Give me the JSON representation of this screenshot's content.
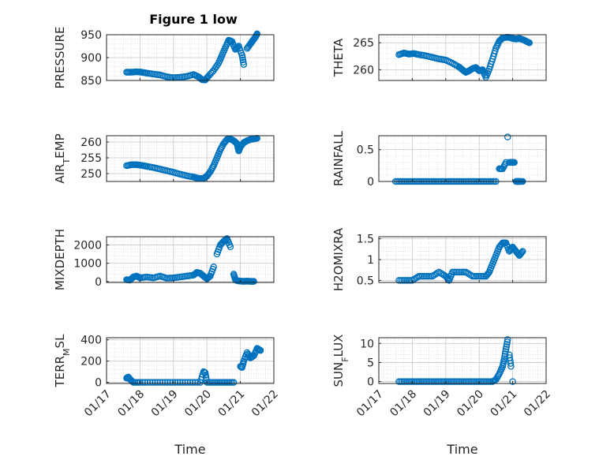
{
  "figure": {
    "title": "Figure 1 low",
    "marker_color": "#0072BD"
  },
  "chart_data": [
    {
      "type": "scatter",
      "ylabel": "PRESSURE",
      "ylabel_sub": "",
      "ylim": [
        850,
        950
      ],
      "yticks": [
        850,
        900,
        950
      ],
      "ytick_labels": [
        "850",
        "900",
        "950"
      ],
      "xlim": [
        "01/17",
        "01/22"
      ],
      "xticks": [
        "01/17",
        "01/18",
        "01/19",
        "01/20",
        "01/21",
        "01/22"
      ],
      "show_xticklabels": false,
      "grid": true,
      "x": [
        0.6,
        0.75,
        0.9,
        1.05,
        1.2,
        1.4,
        1.6,
        1.8,
        2.0,
        2.2,
        2.4,
        2.6,
        2.75,
        2.85,
        2.95,
        3.05,
        3.2,
        3.35,
        3.45,
        3.55,
        3.65,
        3.75,
        3.85,
        3.95,
        4.05,
        4.1,
        4.2,
        4.3,
        4.35,
        4.4,
        4.45,
        4.5
      ],
      "y": [
        868,
        868,
        869,
        868,
        866,
        864,
        862,
        858,
        856,
        857,
        859,
        863,
        858,
        852,
        851,
        860,
        872,
        888,
        905,
        922,
        938,
        935,
        918,
        925,
        905,
        885,
        920,
        930,
        935,
        940,
        945,
        952
      ]
    },
    {
      "type": "scatter",
      "ylabel": "THETA",
      "ylabel_sub": "",
      "ylim": [
        258,
        266.5
      ],
      "yticks": [
        260,
        265
      ],
      "ytick_labels": [
        "260",
        "265"
      ],
      "xlim": [
        "01/17",
        "01/22"
      ],
      "xticks": [
        "01/17",
        "01/18",
        "01/19",
        "01/20",
        "01/21",
        "01/22"
      ],
      "show_xticklabels": false,
      "grid": true,
      "x": [
        0.6,
        0.75,
        0.9,
        1.05,
        1.2,
        1.4,
        1.6,
        1.8,
        2.0,
        2.2,
        2.4,
        2.5,
        2.6,
        2.7,
        2.8,
        2.9,
        3.0,
        3.1,
        3.2,
        3.3,
        3.4,
        3.5,
        3.6,
        3.7,
        3.8,
        3.9,
        4.0,
        4.1,
        4.2,
        4.3,
        4.4,
        4.5
      ],
      "y": [
        262.8,
        263.1,
        262.9,
        263.0,
        262.8,
        262.6,
        262.3,
        262.0,
        261.8,
        261.2,
        260.5,
        260.0,
        259.5,
        259.8,
        260.2,
        260.4,
        259.8,
        260.0,
        258.6,
        260.1,
        262.0,
        264.0,
        265.3,
        265.9,
        266.0,
        266.0,
        265.8,
        265.7,
        265.8,
        265.6,
        265.3,
        265.0
      ]
    },
    {
      "type": "scatter",
      "ylabel": "AIR",
      "ylabel_sub": "T",
      "ylabel_rest": "EMP",
      "ylim": [
        247.5,
        262
      ],
      "yticks": [
        250,
        255,
        260
      ],
      "ytick_labels": [
        "250",
        "255",
        "260"
      ],
      "xlim": [
        "01/17",
        "01/22"
      ],
      "xticks": [
        "01/17",
        "01/18",
        "01/19",
        "01/20",
        "01/21",
        "01/22"
      ],
      "show_xticklabels": false,
      "grid": true,
      "x": [
        0.6,
        0.75,
        0.9,
        1.05,
        1.2,
        1.4,
        1.6,
        1.8,
        2.0,
        2.2,
        2.4,
        2.6,
        2.7,
        2.8,
        2.9,
        3.0,
        3.1,
        3.2,
        3.3,
        3.4,
        3.5,
        3.6,
        3.7,
        3.8,
        3.9,
        3.95,
        4.0,
        4.1,
        4.2,
        4.3,
        4.4,
        4.5
      ],
      "y": [
        252.5,
        252.8,
        252.8,
        252.6,
        252.3,
        251.9,
        251.4,
        250.9,
        250.4,
        249.8,
        249.3,
        248.9,
        248.6,
        248.4,
        248.5,
        249.2,
        250.6,
        252.5,
        255.0,
        257.6,
        259.5,
        260.8,
        261.0,
        260.4,
        259.5,
        257.2,
        258.5,
        259.8,
        260.4,
        260.8,
        261.0,
        261.2
      ]
    },
    {
      "type": "scatter",
      "ylabel": "RAINFALL",
      "ylabel_sub": "",
      "ylim": [
        0,
        0.72
      ],
      "yticks": [
        0,
        0.5
      ],
      "ytick_labels": [
        "0",
        "0.5"
      ],
      "xlim": [
        "01/17",
        "01/22"
      ],
      "xticks": [
        "01/17",
        "01/18",
        "01/19",
        "01/20",
        "01/21",
        "01/22"
      ],
      "show_xticklabels": false,
      "grid": true,
      "x": [
        0.5,
        0.7,
        0.9,
        1.1,
        1.3,
        1.5,
        1.7,
        1.9,
        2.1,
        2.3,
        2.5,
        2.7,
        2.9,
        3.1,
        3.3,
        3.5,
        3.6,
        3.7,
        3.8,
        3.85,
        3.9,
        3.95,
        4.0,
        4.05,
        4.1,
        4.15,
        4.2,
        4.3
      ],
      "y": [
        0,
        0,
        0,
        0,
        0,
        0,
        0,
        0,
        0,
        0,
        0,
        0,
        0,
        0,
        0,
        0,
        0.2,
        0.2,
        0.3,
        0.7,
        0.3,
        0.3,
        0.3,
        0.3,
        0,
        0,
        0,
        0
      ]
    },
    {
      "type": "scatter",
      "ylabel": "MIXDEPTH",
      "ylabel_sub": "",
      "ylim": [
        -50,
        2450
      ],
      "yticks": [
        0,
        1000,
        2000
      ],
      "ytick_labels": [
        "0",
        "1000",
        "2000"
      ],
      "xlim": [
        "01/17",
        "01/22"
      ],
      "xticks": [
        "01/17",
        "01/18",
        "01/19",
        "01/20",
        "01/21",
        "01/22"
      ],
      "show_xticklabels": false,
      "grid": true,
      "x": [
        0.6,
        0.7,
        0.8,
        0.9,
        1.0,
        1.2,
        1.4,
        1.6,
        1.8,
        2.0,
        2.2,
        2.4,
        2.6,
        2.7,
        2.8,
        2.9,
        3.0,
        3.1,
        3.2,
        3.3,
        3.4,
        3.5,
        3.6,
        3.7,
        3.8,
        3.85,
        3.9,
        4.0,
        4.1,
        4.2,
        4.3,
        4.4
      ],
      "y": [
        100,
        80,
        250,
        300,
        200,
        250,
        200,
        300,
        180,
        200,
        250,
        300,
        350,
        500,
        450,
        300,
        150,
        300,
        800,
        1500,
        2000,
        2200,
        2350,
        1900,
        400,
        100,
        50,
        20,
        10,
        20,
        10,
        10
      ]
    },
    {
      "type": "scatter",
      "ylabel": "H2OMIXRA",
      "ylabel_sub": "",
      "ylim": [
        0.45,
        1.55
      ],
      "yticks": [
        0.5,
        1,
        1.5
      ],
      "ytick_labels": [
        "0.5",
        "1",
        "1.5"
      ],
      "xlim": [
        "01/17",
        "01/22"
      ],
      "xticks": [
        "01/17",
        "01/18",
        "01/19",
        "01/20",
        "01/21",
        "01/22"
      ],
      "show_xticklabels": false,
      "grid": true,
      "x": [
        0.6,
        0.8,
        1.0,
        1.2,
        1.4,
        1.6,
        1.8,
        2.0,
        2.1,
        2.2,
        2.4,
        2.6,
        2.8,
        3.0,
        3.2,
        3.3,
        3.4,
        3.5,
        3.6,
        3.7,
        3.8,
        3.9,
        4.0,
        4.1,
        4.2,
        4.3
      ],
      "y": [
        0.5,
        0.5,
        0.5,
        0.6,
        0.6,
        0.6,
        0.7,
        0.6,
        0.5,
        0.7,
        0.7,
        0.7,
        0.6,
        0.6,
        0.6,
        0.7,
        0.9,
        1.1,
        1.3,
        1.4,
        1.4,
        1.2,
        1.3,
        1.2,
        1.1,
        1.2
      ]
    },
    {
      "type": "scatter",
      "ylabel": "TERR",
      "ylabel_sub": "M",
      "ylabel_rest": "SL",
      "ylim": [
        -10,
        420
      ],
      "yticks": [
        0,
        200,
        400
      ],
      "ytick_labels": [
        "0",
        "200",
        "400"
      ],
      "xlim": [
        "01/17",
        "01/22"
      ],
      "xticks": [
        "01/17",
        "01/18",
        "01/19",
        "01/20",
        "01/21",
        "01/22"
      ],
      "xtick_labels": [
        "01/17",
        "01/18",
        "01/19",
        "01/20",
        "01/21",
        "01/22"
      ],
      "show_xticklabels": true,
      "xlabel": "Time",
      "grid": true,
      "x": [
        0.6,
        0.65,
        0.7,
        0.8,
        1.0,
        1.3,
        1.6,
        1.9,
        2.2,
        2.5,
        2.8,
        2.9,
        2.95,
        3.0,
        3.2,
        3.4,
        3.6,
        3.8,
        4.0,
        4.05,
        4.1,
        4.2,
        4.3,
        4.4,
        4.5,
        4.6
      ],
      "y": [
        40,
        50,
        30,
        0,
        0,
        0,
        0,
        0,
        0,
        0,
        0,
        100,
        90,
        0,
        0,
        0,
        0,
        0,
        150,
        140,
        200,
        280,
        230,
        250,
        320,
        300
      ]
    },
    {
      "type": "scatter",
      "ylabel": "SUN",
      "ylabel_sub": "F",
      "ylabel_rest": "LUX",
      "ylim": [
        -0.5,
        11.5
      ],
      "yticks": [
        0,
        5,
        10
      ],
      "ytick_labels": [
        "0",
        "5",
        "10"
      ],
      "xlim": [
        "01/17",
        "01/22"
      ],
      "xticks": [
        "01/17",
        "01/18",
        "01/19",
        "01/20",
        "01/21",
        "01/22"
      ],
      "xtick_labels": [
        "01/17",
        "01/18",
        "01/19",
        "01/20",
        "01/21",
        "01/22"
      ],
      "show_xticklabels": true,
      "xlabel": "Time",
      "grid": true,
      "x": [
        0.6,
        0.8,
        1.0,
        1.2,
        1.4,
        1.6,
        1.8,
        2.0,
        2.2,
        2.4,
        2.6,
        2.8,
        3.0,
        3.2,
        3.4,
        3.5,
        3.6,
        3.7,
        3.75,
        3.8,
        3.85,
        3.9,
        3.95,
        4.0
      ],
      "y": [
        0,
        0,
        0,
        0,
        0,
        0,
        0,
        0,
        0,
        0,
        0,
        0,
        0,
        0,
        0,
        0.5,
        2,
        4,
        6,
        8.5,
        11,
        7,
        4,
        0
      ]
    }
  ]
}
